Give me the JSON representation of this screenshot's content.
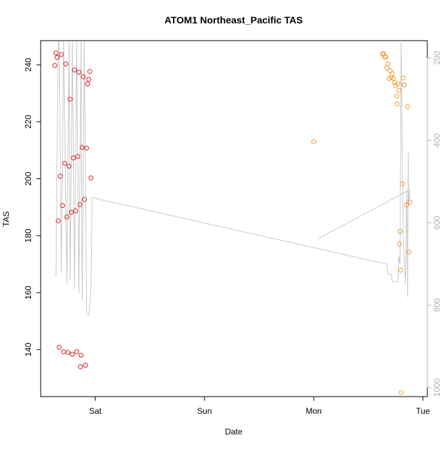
{
  "chart_data": {
    "type": "scatter",
    "title": "ATOM1 Northeast_Pacific TAS",
    "xlabel": "Date",
    "ylabel": "TAS",
    "x_ticks": [
      "Sat",
      "Sun",
      "Mon",
      "Tue"
    ],
    "y_ticks": [
      140,
      160,
      180,
      200,
      220,
      240
    ],
    "y_range": [
      123.5,
      248.5
    ],
    "y2_ticks": [
      200,
      400,
      600,
      800,
      1000
    ],
    "y2_range": [
      1022,
      158
    ],
    "y2_inverted": true,
    "grid": false,
    "legend": "none",
    "x_unit": "days after Saturday 00:00",
    "x_range": [
      -0.5,
      3.04
    ],
    "series": [
      {
        "color": "#e01b1b",
        "marker": "open-circle",
        "points": [
          [
            -0.37,
            239.8
          ],
          [
            -0.36,
            244.2
          ],
          [
            -0.35,
            242.6
          ],
          [
            -0.34,
            185.2
          ],
          [
            -0.33,
            140.8
          ],
          [
            -0.32,
            200.9
          ],
          [
            -0.31,
            243.6
          ],
          [
            -0.3,
            190.6
          ],
          [
            -0.29,
            139.3
          ],
          [
            -0.28,
            205.4
          ],
          [
            -0.27,
            240.3
          ],
          [
            -0.26,
            186.6
          ],
          [
            -0.25,
            139.0
          ],
          [
            -0.24,
            204.4
          ],
          [
            -0.23,
            227.9
          ],
          [
            -0.22,
            188.2
          ],
          [
            -0.21,
            138.4
          ],
          [
            -0.2,
            207.3
          ],
          [
            -0.19,
            238.2
          ],
          [
            -0.18,
            188.7
          ],
          [
            -0.17,
            139.3
          ],
          [
            -0.16,
            207.8
          ],
          [
            -0.15,
            237.4
          ],
          [
            -0.14,
            190.9
          ],
          [
            -0.135,
            134.0
          ],
          [
            -0.13,
            138.0
          ],
          [
            -0.12,
            211.0
          ],
          [
            -0.11,
            235.8
          ],
          [
            -0.1,
            192.7
          ],
          [
            -0.09,
            134.5
          ],
          [
            -0.08,
            210.7
          ],
          [
            -0.07,
            233.3
          ],
          [
            -0.06,
            234.9
          ],
          [
            -0.05,
            237.7
          ],
          [
            -0.04,
            200.3
          ]
        ]
      },
      {
        "color": "#ee9a2e",
        "marker": "open-circle",
        "points": [
          [
            2.0,
            213.0
          ],
          [
            2.63,
            243.9
          ],
          [
            2.64,
            243.9
          ],
          [
            2.65,
            242.8
          ],
          [
            2.66,
            242.8
          ],
          [
            2.67,
            238.9
          ],
          [
            2.68,
            240.3
          ],
          [
            2.69,
            235.2
          ],
          [
            2.7,
            237.9
          ],
          [
            2.71,
            235.6
          ],
          [
            2.72,
            236.9
          ],
          [
            2.73,
            235.2
          ],
          [
            2.74,
            233.8
          ],
          [
            2.75,
            232.7
          ],
          [
            2.76,
            229.0
          ],
          [
            2.765,
            226.3
          ],
          [
            2.77,
            233.3
          ],
          [
            2.78,
            231.0
          ],
          [
            2.785,
            177.1
          ],
          [
            2.79,
            181.5
          ],
          [
            2.795,
            167.9
          ],
          [
            2.8,
            124.9
          ],
          [
            2.81,
            198.2
          ],
          [
            2.82,
            235.4
          ],
          [
            2.83,
            233.0
          ],
          [
            2.85,
            190.8
          ],
          [
            2.86,
            225.3
          ],
          [
            2.87,
            174.3
          ],
          [
            2.88,
            191.8
          ]
        ]
      },
      {
        "color": "#c8c8c8",
        "mode": "line",
        "axis": "right",
        "points": [
          [
            -0.37,
            730
          ],
          [
            -0.36,
            730
          ],
          [
            -0.34,
            160
          ],
          [
            -0.33,
            160
          ],
          [
            -0.31,
            720
          ],
          [
            -0.29,
            160
          ],
          [
            -0.26,
            750
          ],
          [
            -0.24,
            160
          ],
          [
            -0.23,
            740
          ],
          [
            -0.21,
            160
          ],
          [
            -0.19,
            760
          ],
          [
            -0.17,
            160
          ],
          [
            -0.15,
            770
          ],
          [
            -0.13,
            160
          ],
          [
            -0.12,
            790
          ],
          [
            -0.1,
            160
          ],
          [
            -0.08,
            820
          ],
          [
            -0.06,
            825
          ],
          [
            -0.04,
            760
          ],
          [
            -0.03,
            539
          ],
          [
            2.66,
            700
          ],
          [
            2.67,
            700
          ],
          [
            2.68,
            725
          ],
          [
            2.71,
            725
          ],
          [
            2.72,
            743
          ],
          [
            2.77,
            743
          ],
          [
            2.78,
            680
          ],
          [
            2.79,
            700
          ],
          [
            2.8,
            158
          ],
          [
            2.82,
            640
          ],
          [
            2.84,
            750
          ],
          [
            2.85,
            520
          ],
          [
            2.855,
            630
          ],
          [
            2.86,
            780
          ],
          [
            2.865,
            430
          ],
          [
            2.87,
            560
          ],
          [
            2.88,
            520
          ],
          [
            2.03,
            640
          ]
        ]
      }
    ]
  }
}
